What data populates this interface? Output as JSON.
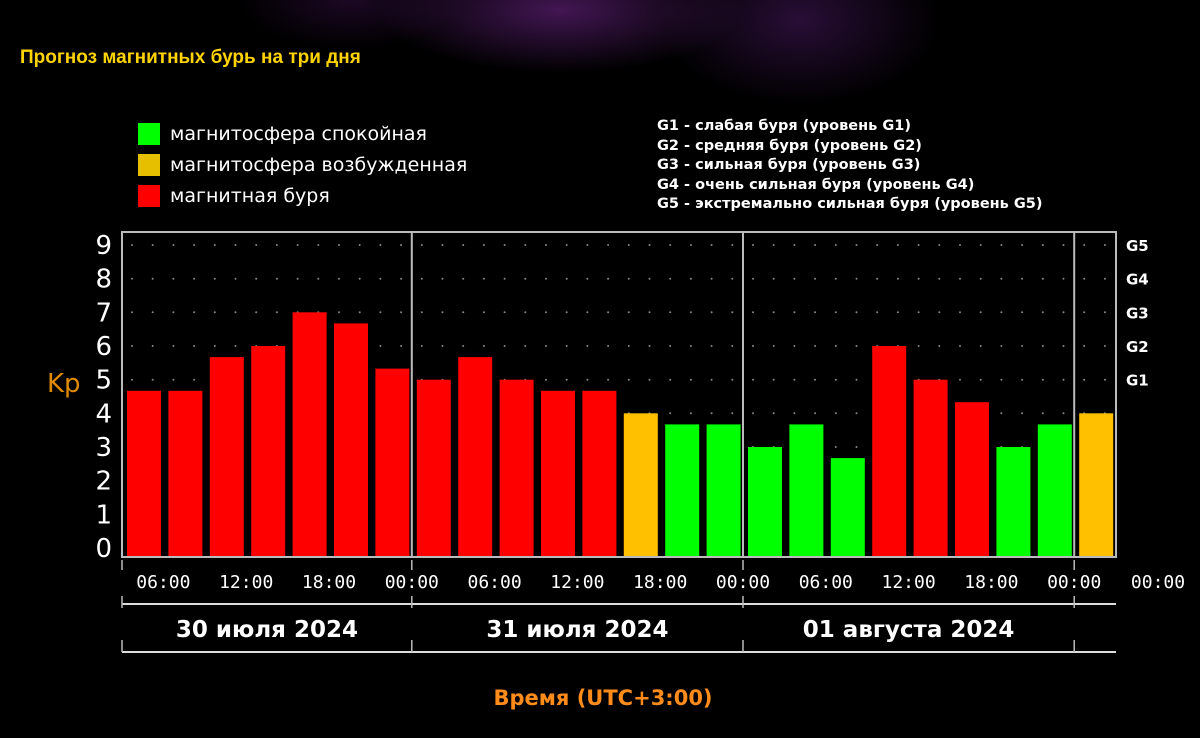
{
  "title": "Прогноз магнитных бурь на три дня",
  "legend": [
    {
      "label": "магнитосфера спокойная",
      "color": "#00ff00"
    },
    {
      "label": "магнитосфера возбужденная",
      "color": "#e6c000"
    },
    {
      "label": "магнитная буря",
      "color": "#ff0000"
    }
  ],
  "g_legend": [
    "G1 - слабая буря (уровень G1)",
    "G2 - средняя буря (уровень G2)",
    "G3 - сильная буря (уровень G3)",
    "G4 - очень сильная буря (уровень G4)",
    "G5 - экстремально сильная буря (уровень G5)"
  ],
  "chart_data": {
    "type": "bar",
    "ylabel": "Kp",
    "xlabel": "Время (UTC+3:00)",
    "ylim": [
      0,
      9
    ],
    "yticks": [
      0,
      1,
      2,
      3,
      4,
      5,
      6,
      7,
      8,
      9
    ],
    "right_ticks": [
      {
        "label": "G1",
        "value": 5
      },
      {
        "label": "G2",
        "value": 6
      },
      {
        "label": "G3",
        "value": 7
      },
      {
        "label": "G4",
        "value": 8
      },
      {
        "label": "G5",
        "value": 9
      }
    ],
    "grid": "dotted",
    "interval_hours": 3,
    "start": "30 июля 2024 03:00",
    "days": [
      "30 июля 2024",
      "31 июля 2024",
      "01 августа 2024"
    ],
    "time_ticks": [
      "06:00",
      "12:00",
      "18:00",
      "00:00",
      "06:00",
      "12:00",
      "18:00",
      "00:00",
      "06:00",
      "12:00",
      "18:00",
      "00:00",
      "00:00"
    ],
    "colors": {
      "quiet": "#00ff00",
      "active": "#ffc000",
      "storm": "#ff0000"
    },
    "values": [
      4.67,
      4.67,
      5.67,
      6.0,
      7.0,
      6.67,
      5.33,
      5.0,
      5.67,
      5.0,
      4.67,
      4.67,
      4.0,
      3.67,
      3.67,
      3.0,
      3.67,
      2.67,
      6.0,
      5.0,
      4.33,
      3.0,
      3.67,
      4.0
    ],
    "states": [
      "storm",
      "storm",
      "storm",
      "storm",
      "storm",
      "storm",
      "storm",
      "storm",
      "storm",
      "storm",
      "storm",
      "storm",
      "active",
      "quiet",
      "quiet",
      "quiet",
      "quiet",
      "quiet",
      "storm",
      "storm",
      "storm",
      "quiet",
      "quiet",
      "active"
    ]
  }
}
